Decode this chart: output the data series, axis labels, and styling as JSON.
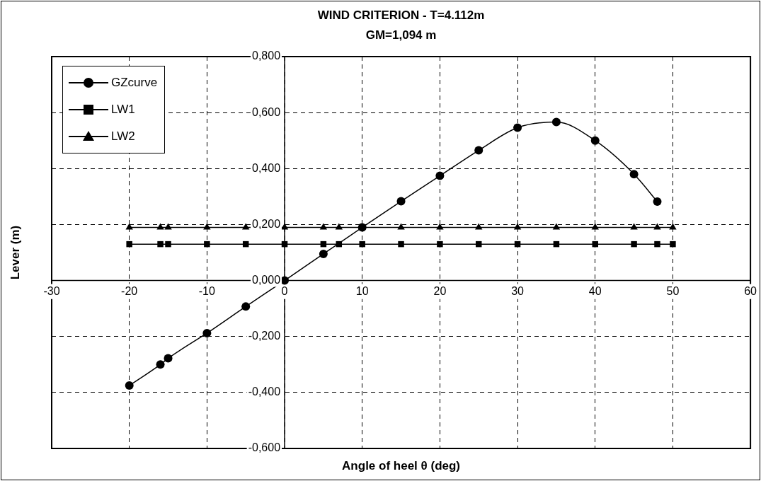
{
  "chart_data": {
    "type": "line",
    "title": "WIND CRITERION - T=4.112m",
    "subtitle": "GM=1,094 m",
    "xlabel": "Angle of heel θ (deg)",
    "ylabel": "Lever (m)",
    "xlim": [
      -30,
      60
    ],
    "xticks": [
      -30,
      -20,
      -10,
      0,
      10,
      20,
      30,
      40,
      50,
      60
    ],
    "ylim": [
      -0.6,
      0.8
    ],
    "yticks": [
      {
        "value": -0.6,
        "label": "-0,600"
      },
      {
        "value": -0.4,
        "label": "-0,400"
      },
      {
        "value": -0.2,
        "label": "-0,200"
      },
      {
        "value": 0,
        "label": "0,000"
      },
      {
        "value": 0.2,
        "label": "0,200"
      },
      {
        "value": 0.4,
        "label": "0,400"
      },
      {
        "value": 0.6,
        "label": "0,600"
      },
      {
        "value": 0.8,
        "label": "0,800"
      }
    ],
    "grid": true,
    "legend": "top left",
    "line_style": "solid",
    "series": [
      {
        "name": "GZcurve",
        "color": "#000000",
        "marker": "circle",
        "x": [
          -20,
          -16,
          -15,
          -10,
          -5,
          0,
          5,
          10,
          15,
          20,
          25,
          30,
          35,
          40,
          45,
          48
        ],
        "values": [
          -0.375,
          -0.3,
          -0.278,
          -0.188,
          -0.093,
          0,
          0.095,
          0.19,
          0.283,
          0.374,
          0.465,
          0.546,
          0.566,
          0.5,
          0.38,
          0.282
        ]
      },
      {
        "name": "LW1",
        "color": "#000000",
        "marker": "square",
        "x": [
          -20,
          -16,
          -15,
          -10,
          -5,
          0,
          5,
          7,
          10,
          15,
          20,
          25,
          30,
          35,
          40,
          45,
          48,
          50
        ],
        "values": [
          0.13,
          0.13,
          0.13,
          0.13,
          0.13,
          0.13,
          0.13,
          0.13,
          0.13,
          0.13,
          0.13,
          0.13,
          0.13,
          0.13,
          0.13,
          0.13,
          0.13,
          0.13
        ]
      },
      {
        "name": "LW2",
        "color": "#000000",
        "marker": "triangle",
        "x": [
          -20,
          -16,
          -15,
          -10,
          -5,
          0,
          5,
          7,
          10,
          15,
          20,
          25,
          30,
          35,
          40,
          45,
          48,
          50
        ],
        "values": [
          0.19,
          0.19,
          0.19,
          0.19,
          0.19,
          0.19,
          0.19,
          0.19,
          0.19,
          0.19,
          0.19,
          0.19,
          0.19,
          0.19,
          0.19,
          0.19,
          0.19,
          0.19
        ]
      }
    ]
  }
}
